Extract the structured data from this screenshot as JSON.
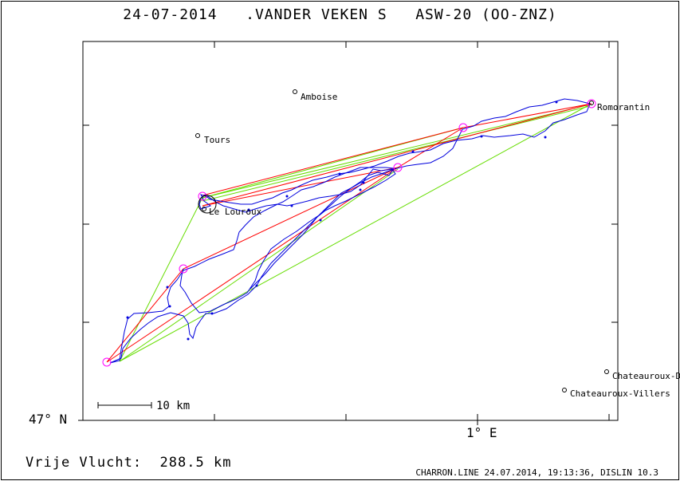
{
  "header": {
    "date": "24-07-2014",
    "pilot": ".VANDER VEKEN S",
    "glider": "ASW-20 (OO-ZNZ)"
  },
  "axes": {
    "lat_label": "47° N",
    "lon_label": "1° E"
  },
  "scale_bar": {
    "label": "10 km"
  },
  "places": [
    {
      "name": "Amboise"
    },
    {
      "name": "Tours"
    },
    {
      "name": "Romorantin"
    },
    {
      "name": "Le Louroux"
    },
    {
      "name": "Chateauroux-D"
    },
    {
      "name": "Chateauroux-Villers"
    }
  ],
  "colors": {
    "track": "#0000dd",
    "legs": "#ff0000",
    "optim": "#66dd00",
    "turnpoint": "#ff00ff",
    "text": "#000000"
  },
  "footer": {
    "distance_label": "Vrije Vlucht:",
    "distance_value": "288.5 km",
    "program": "CHARRON.LINE 24.07.2014, 19:13:36, DISLIN 10.3"
  }
}
